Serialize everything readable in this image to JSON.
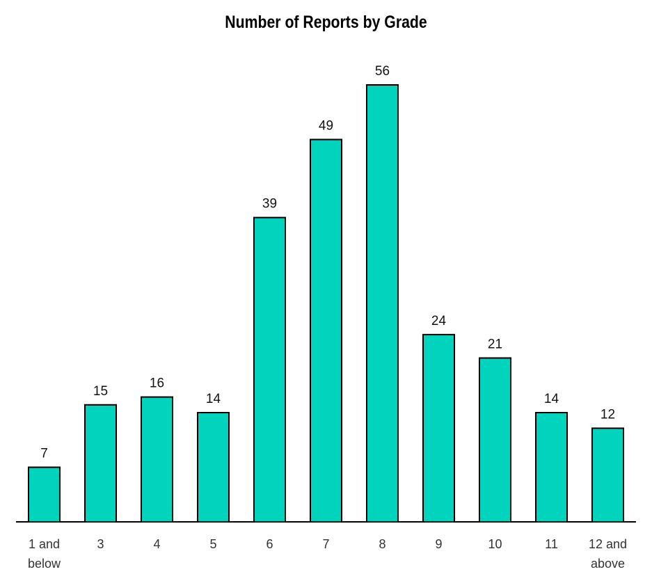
{
  "chart_data": {
    "type": "bar",
    "title": "Number of Reports by Grade",
    "categories": [
      "1 and below",
      "3",
      "4",
      "5",
      "6",
      "7",
      "8",
      "9",
      "10",
      "11",
      "12 and above"
    ],
    "category_lines": [
      [
        "1 and",
        "below"
      ],
      [
        "3"
      ],
      [
        "4"
      ],
      [
        "5"
      ],
      [
        "6"
      ],
      [
        "7"
      ],
      [
        "8"
      ],
      [
        "9"
      ],
      [
        "10"
      ],
      [
        "11"
      ],
      [
        "12 and",
        "above"
      ]
    ],
    "values": [
      7,
      15,
      16,
      14,
      39,
      49,
      56,
      24,
      21,
      14,
      12
    ],
    "xlabel": "",
    "ylabel": "",
    "ylim": [
      0,
      56
    ],
    "grid": false,
    "data_labels": true,
    "bar_color": "#00D4BC",
    "bar_edge_color": "#000000"
  }
}
